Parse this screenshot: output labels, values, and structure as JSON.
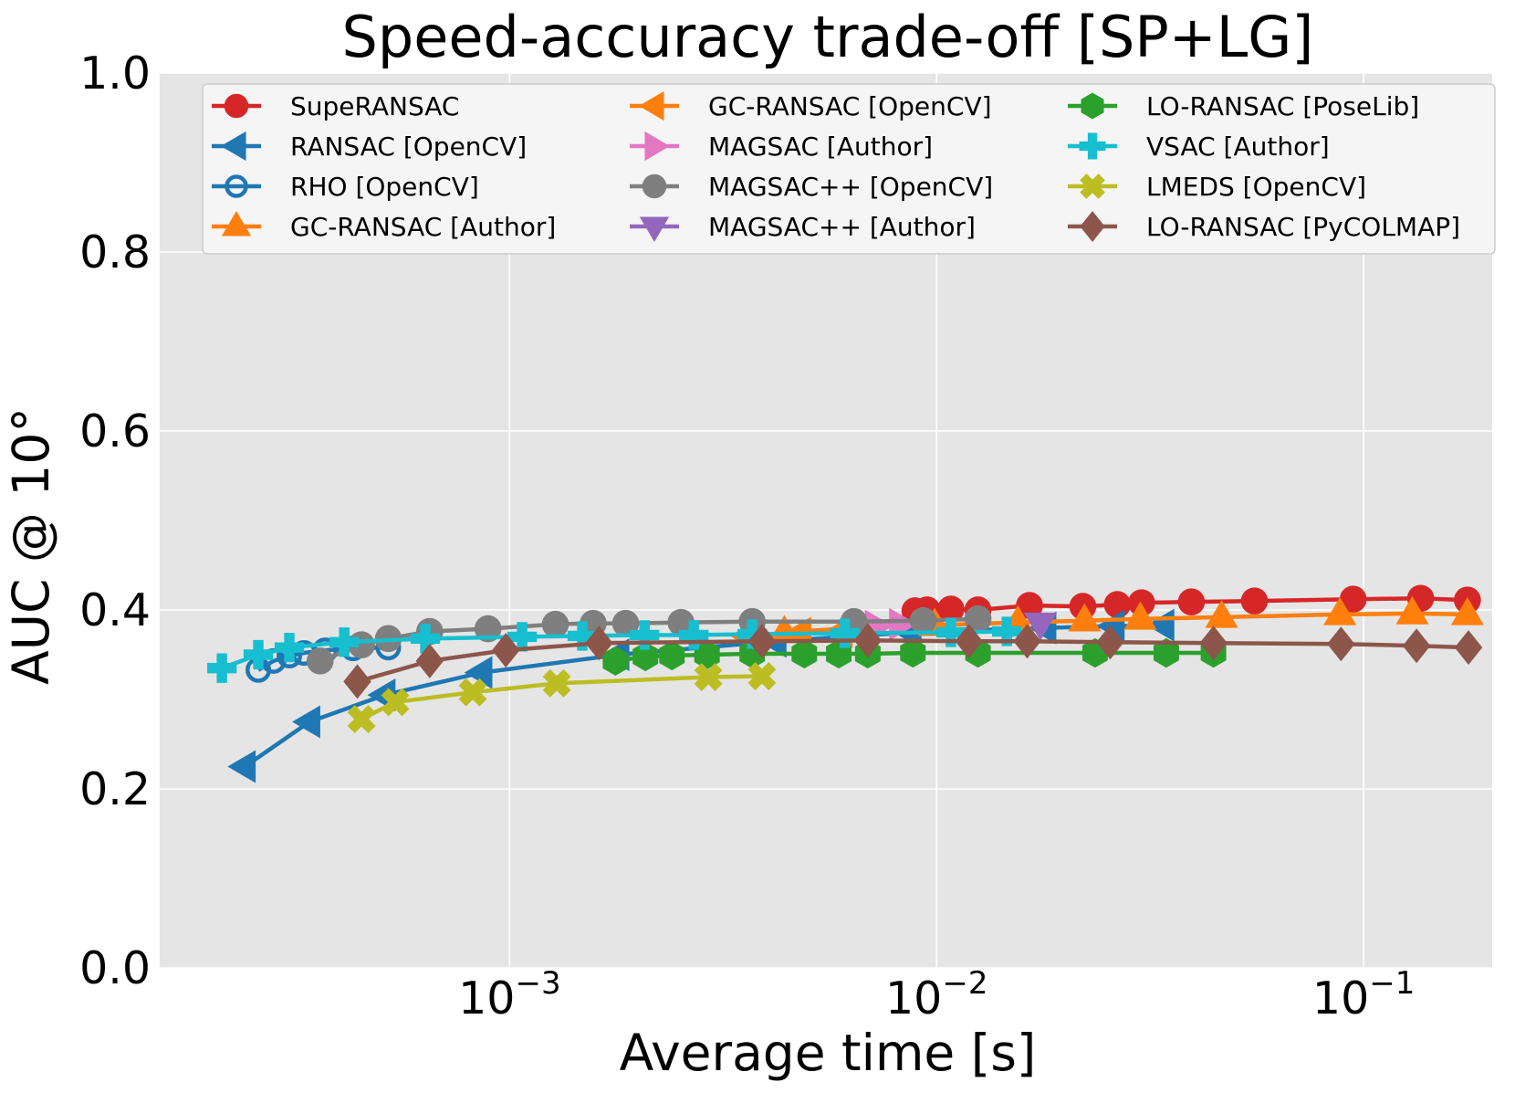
{
  "chart_data": {
    "type": "line",
    "title": "Speed-accuracy trade-off [SP+LG]",
    "xlabel": "Average time [s]",
    "ylabel": "AUC @ 10°",
    "xscale": "log",
    "xlim": [
      0.0001516,
      0.2
    ],
    "ylim": [
      0.0,
      1.0
    ],
    "grid": true,
    "legend_position": "top",
    "legend_columns": 3,
    "y_ticks": [
      {
        "value": 0.0,
        "label": "0.0"
      },
      {
        "value": 0.2,
        "label": "0.2"
      },
      {
        "value": 0.4,
        "label": "0.4"
      },
      {
        "value": 0.6,
        "label": "0.6"
      },
      {
        "value": 0.8,
        "label": "0.8"
      },
      {
        "value": 1.0,
        "label": "1.0"
      }
    ],
    "x_ticks": [
      {
        "value": 0.001,
        "base": "10",
        "exponent": "−3"
      },
      {
        "value": 0.01,
        "base": "10",
        "exponent": "−2"
      },
      {
        "value": 0.1,
        "base": "10",
        "exponent": "−1"
      }
    ],
    "series": [
      {
        "name": "SupeRANSAC",
        "color": "#d62728",
        "marker": "circle",
        "x": [
          0.0089,
          0.0095,
          0.0108,
          0.0125,
          0.0165,
          0.022,
          0.0265,
          0.0302,
          0.0395,
          0.0555,
          0.0945,
          0.136,
          0.175
        ],
        "y": [
          0.399,
          0.4,
          0.401,
          0.4,
          0.405,
          0.404,
          0.406,
          0.408,
          0.409,
          0.41,
          0.412,
          0.413,
          0.411
        ]
      },
      {
        "name": "RANSAC [OpenCV]",
        "color": "#1f77b4",
        "marker": "triangle-left",
        "x": [
          0.00024,
          0.00034,
          0.00051,
          0.00086,
          0.0018,
          0.0042,
          0.0087,
          0.018,
          0.026,
          0.034
        ],
        "y": [
          0.225,
          0.275,
          0.305,
          0.33,
          0.35,
          0.365,
          0.375,
          0.38,
          0.382,
          0.383
        ]
      },
      {
        "name": "RHO [OpenCV]",
        "color": "#1f77b4",
        "marker": "circle-open",
        "x": [
          0.000258,
          0.00028,
          0.000305,
          0.00033,
          0.00037,
          0.00043,
          0.00052
        ],
        "y": [
          0.333,
          0.343,
          0.349,
          0.352,
          0.355,
          0.357,
          0.358
        ]
      },
      {
        "name": "GC-RANSAC [Author]",
        "color": "#ff7f0e",
        "marker": "triangle-up",
        "x": [
          0.0044,
          0.0064,
          0.0099,
          0.0155,
          0.0222,
          0.03,
          0.0465,
          0.088,
          0.13,
          0.175
        ],
        "y": [
          0.375,
          0.38,
          0.383,
          0.386,
          0.388,
          0.39,
          0.392,
          0.395,
          0.396,
          0.395
        ]
      },
      {
        "name": "GC-RANSAC [OpenCV]",
        "color": "#ff7f0e",
        "marker": "triangle-left",
        "x": [
          0.0036,
          0.0048,
          0.006
        ],
        "y": [
          0.371,
          0.374,
          0.376
        ]
      },
      {
        "name": "MAGSAC [Author]",
        "color": "#e377c2",
        "marker": "triangle-right",
        "x": [
          0.0072,
          0.0082
        ],
        "y": [
          0.382,
          0.384
        ]
      },
      {
        "name": "MAGSAC++ [OpenCV]",
        "color": "#7f7f7f",
        "marker": "circle",
        "x": [
          0.00036,
          0.00045,
          0.00052,
          0.00065,
          0.00089,
          0.00128,
          0.00157,
          0.00187,
          0.00252,
          0.0037,
          0.0064,
          0.0093,
          0.0125
        ],
        "y": [
          0.343,
          0.361,
          0.368,
          0.376,
          0.379,
          0.384,
          0.385,
          0.385,
          0.386,
          0.387,
          0.387,
          0.388,
          0.39
        ]
      },
      {
        "name": "MAGSAC++ [Author]",
        "color": "#9467bd",
        "marker": "triangle-down",
        "x": [
          0.0175
        ],
        "y": [
          0.385
        ]
      },
      {
        "name": "LO-RANSAC [PoseLib]",
        "color": "#2ca02c",
        "marker": "hexagon",
        "x": [
          0.00177,
          0.00208,
          0.0024,
          0.0029,
          0.0037,
          0.0049,
          0.0059,
          0.0069,
          0.0088,
          0.0125,
          0.0235,
          0.0345,
          0.0445
        ],
        "y": [
          0.343,
          0.348,
          0.349,
          0.35,
          0.351,
          0.351,
          0.351,
          0.351,
          0.352,
          0.352,
          0.352,
          0.352,
          0.352
        ]
      },
      {
        "name": "VSAC [Author]",
        "color": "#17becf",
        "marker": "plus",
        "x": [
          0.000212,
          0.000258,
          0.000305,
          0.00041,
          0.000635,
          0.00107,
          0.00148,
          0.00207,
          0.0027,
          0.0037,
          0.0061,
          0.0108,
          0.0146
        ],
        "y": [
          0.335,
          0.35,
          0.358,
          0.364,
          0.368,
          0.37,
          0.371,
          0.372,
          0.372,
          0.373,
          0.374,
          0.375,
          0.376
        ]
      },
      {
        "name": "LMEDS [OpenCV]",
        "color": "#bcbd22",
        "marker": "x",
        "x": [
          0.00045,
          0.00054,
          0.00082,
          0.00129,
          0.00292,
          0.0039
        ],
        "y": [
          0.278,
          0.297,
          0.308,
          0.318,
          0.325,
          0.326
        ]
      },
      {
        "name": "LO-RANSAC [PyCOLMAP]",
        "color": "#8c564b",
        "marker": "diamond",
        "x": [
          0.00044,
          0.00065,
          0.00098,
          0.00162,
          0.0039,
          0.0069,
          0.0119,
          0.0163,
          0.0255,
          0.0445,
          0.0885,
          0.133,
          0.176
        ],
        "y": [
          0.32,
          0.343,
          0.355,
          0.363,
          0.365,
          0.366,
          0.365,
          0.365,
          0.364,
          0.363,
          0.362,
          0.36,
          0.358
        ]
      }
    ]
  }
}
